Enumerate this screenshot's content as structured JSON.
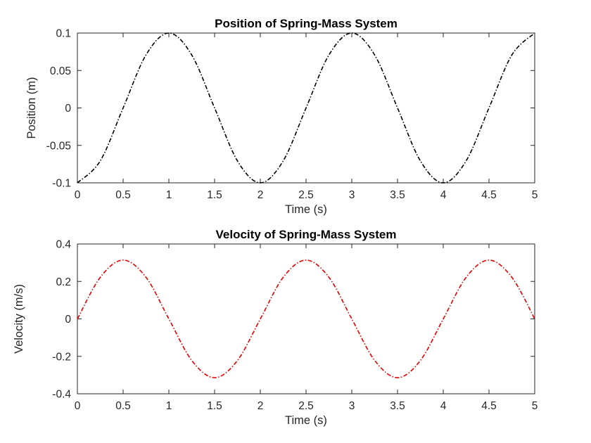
{
  "chart_data": [
    {
      "type": "line",
      "title": "Position of Spring-Mass System",
      "xlabel": "Time (s)",
      "ylabel": "Position (m)",
      "xlim": [
        0,
        5
      ],
      "ylim": [
        -0.1,
        0.1
      ],
      "x_ticks": [
        "0",
        "0.5",
        "1",
        "1.5",
        "2",
        "2.5",
        "3",
        "3.5",
        "4",
        "4.5",
        "5"
      ],
      "y_ticks": [
        "-0.1",
        "-0.05",
        "0",
        "0.05",
        "0.1"
      ],
      "grid": false,
      "line_style": "dash-dot",
      "color": "#000000",
      "series": [
        {
          "x": [
            0,
            0.25,
            0.5,
            0.75,
            1,
            1.25,
            1.5,
            1.75,
            2,
            2.25,
            2.5,
            2.75,
            3,
            3.25,
            3.5,
            3.75,
            4,
            4.25,
            4.5,
            4.75,
            5
          ],
          "values": [
            -0.1,
            -0.0707,
            0,
            0.0707,
            0.1,
            0.0707,
            0,
            -0.0707,
            -0.1,
            -0.0707,
            0,
            0.0707,
            0.1,
            0.0707,
            0,
            -0.0707,
            -0.1,
            -0.0707,
            0,
            0.0707,
            0.1
          ]
        }
      ]
    },
    {
      "type": "line",
      "title": "Velocity of Spring-Mass System",
      "xlabel": "Time (s)",
      "ylabel": "Velocity (m/s)",
      "xlim": [
        0,
        5
      ],
      "ylim": [
        -0.4,
        0.4
      ],
      "x_ticks": [
        "0",
        "0.5",
        "1",
        "1.5",
        "2",
        "2.5",
        "3",
        "3.5",
        "4",
        "4.5",
        "5"
      ],
      "y_ticks": [
        "-0.4",
        "-0.2",
        "0",
        "0.2",
        "0.4"
      ],
      "grid": false,
      "line_style": "dash-dot",
      "color": "#e60000",
      "series": [
        {
          "x": [
            0,
            0.25,
            0.5,
            0.75,
            1,
            1.25,
            1.5,
            1.75,
            2,
            2.25,
            2.5,
            2.75,
            3,
            3.25,
            3.5,
            3.75,
            4,
            4.25,
            4.5,
            4.75,
            5
          ],
          "values": [
            0,
            0.222,
            0.314,
            0.222,
            0,
            -0.222,
            -0.314,
            -0.222,
            0,
            0.222,
            0.314,
            0.222,
            0,
            -0.222,
            -0.314,
            -0.222,
            0,
            0.222,
            0.314,
            0.222,
            0
          ]
        }
      ]
    }
  ]
}
